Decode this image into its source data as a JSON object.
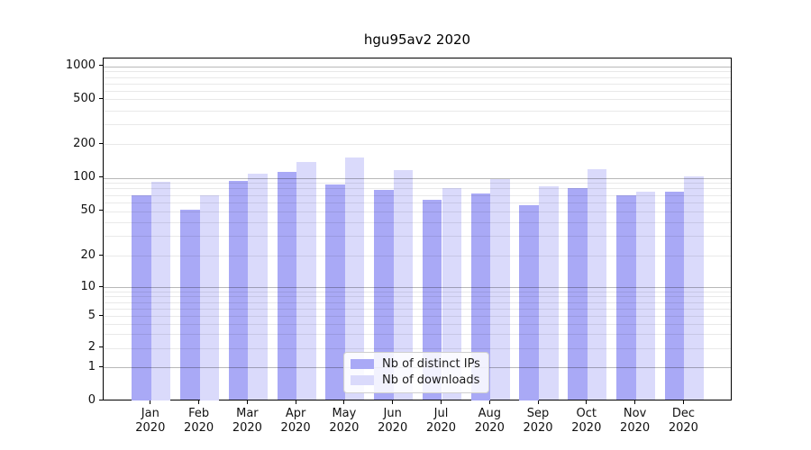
{
  "chart_data": {
    "type": "bar",
    "title": "hgu95av2 2020",
    "categories": [
      "Jan 2020",
      "Feb 2020",
      "Mar 2020",
      "Apr 2020",
      "May 2020",
      "Jun 2020",
      "Jul 2020",
      "Aug 2020",
      "Sep 2020",
      "Oct 2020",
      "Nov 2020",
      "Dec 2020"
    ],
    "series": [
      {
        "name": "Nb of distinct IPs",
        "color": "#a9a9f6",
        "values": [
          70,
          51,
          94,
          112,
          87,
          78,
          63,
          72,
          57,
          80,
          69,
          75
        ]
      },
      {
        "name": "Nb of downloads",
        "color": "#dadafb",
        "values": [
          92,
          70,
          108,
          139,
          151,
          117,
          81,
          97,
          84,
          120,
          75,
          103
        ]
      }
    ],
    "y_axis": {
      "scale": "symlog",
      "ticks": [
        0,
        1,
        2,
        5,
        10,
        20,
        50,
        100,
        200,
        500,
        1000
      ]
    },
    "grid": true,
    "legend_position": "lower center",
    "accent_colors": {
      "major_gridline": "#b7b7b7",
      "minor_gridline": "#e9e9e9",
      "axis": "#000000"
    }
  }
}
